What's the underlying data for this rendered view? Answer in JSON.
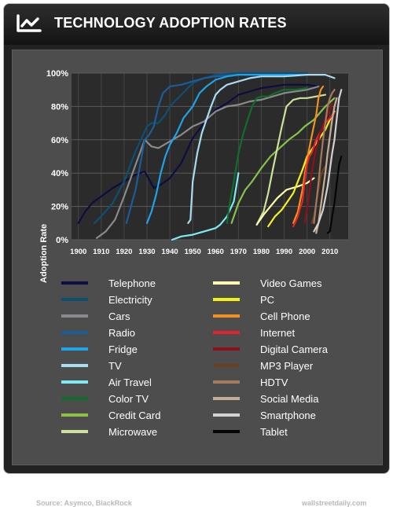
{
  "header": {
    "title": "TECHNOLOGY ADOPTION RATES",
    "logo_icon": "line-chart-logo-icon"
  },
  "footer": {
    "source": "Source: Asymco, BlackRock",
    "site": "wallstreetdaily.com"
  },
  "chart_data": {
    "type": "line",
    "title": "TECHNOLOGY ADOPTION RATES",
    "xlabel": "",
    "ylabel": "Adoption Rate",
    "xlim": [
      1897,
      2018
    ],
    "ylim": [
      0,
      100
    ],
    "x_ticks": [
      1900,
      1910,
      1920,
      1930,
      1940,
      1950,
      1960,
      1970,
      1980,
      1990,
      2000,
      2010
    ],
    "y_ticks": [
      0,
      20,
      40,
      60,
      80,
      100
    ],
    "y_tick_labels": [
      "0%",
      "20%",
      "40%",
      "60%",
      "80%",
      "100%"
    ],
    "grid": true,
    "legend": "bottom",
    "series": [
      {
        "name": "Telephone",
        "color": "#0d0d40",
        "points": [
          [
            1900,
            10
          ],
          [
            1903,
            17
          ],
          [
            1906,
            22
          ],
          [
            1910,
            26
          ],
          [
            1915,
            31
          ],
          [
            1920,
            35
          ],
          [
            1925,
            39
          ],
          [
            1929,
            41
          ],
          [
            1931,
            36
          ],
          [
            1933,
            31
          ],
          [
            1936,
            33
          ],
          [
            1940,
            37
          ],
          [
            1945,
            46
          ],
          [
            1950,
            61
          ],
          [
            1955,
            70
          ],
          [
            1960,
            78
          ],
          [
            1965,
            82
          ],
          [
            1970,
            87
          ],
          [
            1975,
            89
          ],
          [
            1980,
            91
          ],
          [
            1985,
            92
          ],
          [
            1990,
            93
          ],
          [
            1995,
            93
          ],
          [
            2000,
            93
          ],
          [
            2005,
            92
          ]
        ]
      },
      {
        "name": "Electricity",
        "color": "#0e4f73",
        "points": [
          [
            1907,
            10
          ],
          [
            1910,
            14
          ],
          [
            1915,
            22
          ],
          [
            1920,
            35
          ],
          [
            1925,
            53
          ],
          [
            1930,
            68
          ],
          [
            1932,
            70
          ],
          [
            1935,
            70
          ],
          [
            1938,
            75
          ],
          [
            1940,
            80
          ],
          [
            1945,
            87
          ],
          [
            1950,
            94
          ],
          [
            1955,
            97
          ],
          [
            1960,
            99
          ],
          [
            1970,
            100
          ],
          [
            1980,
            100
          ],
          [
            2000,
            100
          ]
        ]
      },
      {
        "name": "Cars",
        "color": "#8a8a8e",
        "points": [
          [
            1908,
            1
          ],
          [
            1912,
            5
          ],
          [
            1916,
            12
          ],
          [
            1920,
            26
          ],
          [
            1925,
            45
          ],
          [
            1929,
            60
          ],
          [
            1932,
            56
          ],
          [
            1935,
            55
          ],
          [
            1940,
            59
          ],
          [
            1945,
            63
          ],
          [
            1950,
            68
          ],
          [
            1955,
            71
          ],
          [
            1960,
            77
          ],
          [
            1965,
            80
          ],
          [
            1970,
            81
          ],
          [
            1975,
            83
          ],
          [
            1980,
            84
          ],
          [
            1990,
            88
          ],
          [
            2000,
            90
          ],
          [
            2005,
            92
          ]
        ]
      },
      {
        "name": "Radio",
        "color": "#1a5d9b",
        "points": [
          [
            1921,
            10
          ],
          [
            1923,
            20
          ],
          [
            1925,
            30
          ],
          [
            1927,
            45
          ],
          [
            1929,
            60
          ],
          [
            1931,
            63
          ],
          [
            1933,
            68
          ],
          [
            1935,
            80
          ],
          [
            1937,
            88
          ],
          [
            1940,
            92
          ],
          [
            1945,
            93
          ],
          [
            1950,
            95
          ],
          [
            1955,
            97
          ],
          [
            1960,
            98
          ],
          [
            1970,
            99
          ],
          [
            1980,
            99
          ]
        ]
      },
      {
        "name": "Fridge",
        "color": "#1ea3e8",
        "points": [
          [
            1930,
            10
          ],
          [
            1932,
            17
          ],
          [
            1934,
            27
          ],
          [
            1936,
            40
          ],
          [
            1938,
            50
          ],
          [
            1940,
            57
          ],
          [
            1943,
            64
          ],
          [
            1946,
            73
          ],
          [
            1950,
            80
          ],
          [
            1953,
            88
          ],
          [
            1956,
            92
          ],
          [
            1960,
            96
          ],
          [
            1965,
            98
          ],
          [
            1970,
            99
          ],
          [
            1980,
            99
          ],
          [
            1990,
            99
          ],
          [
            2000,
            99
          ]
        ]
      },
      {
        "name": "TV",
        "color": "#a9dcf2",
        "points": [
          [
            1948,
            10
          ],
          [
            1949,
            12
          ],
          [
            1950,
            35
          ],
          [
            1952,
            52
          ],
          [
            1954,
            64
          ],
          [
            1956,
            72
          ],
          [
            1958,
            80
          ],
          [
            1960,
            87
          ],
          [
            1962,
            90
          ],
          [
            1965,
            93
          ],
          [
            1970,
            95
          ],
          [
            1975,
            97
          ],
          [
            1980,
            98
          ],
          [
            1990,
            98
          ],
          [
            2000,
            99
          ],
          [
            2008,
            99
          ],
          [
            2012,
            97
          ]
        ]
      },
      {
        "name": "Air Travel",
        "color": "#80eaf2",
        "points": [
          [
            1941,
            0
          ],
          [
            1945,
            2
          ],
          [
            1950,
            3
          ],
          [
            1955,
            5
          ],
          [
            1960,
            7
          ],
          [
            1962,
            9
          ],
          [
            1965,
            14
          ],
          [
            1967,
            20
          ],
          [
            1968,
            23
          ],
          [
            1970,
            40
          ]
        ]
      },
      {
        "name": "Color TV",
        "color": "#0f6e2b",
        "points": [
          [
            1965,
            10
          ],
          [
            1966,
            20
          ],
          [
            1968,
            35
          ],
          [
            1970,
            52
          ],
          [
            1972,
            63
          ],
          [
            1974,
            72
          ],
          [
            1976,
            80
          ],
          [
            1978,
            85
          ],
          [
            1980,
            86
          ],
          [
            1983,
            86
          ],
          [
            1986,
            88
          ],
          [
            1990,
            90
          ],
          [
            1995,
            90
          ],
          [
            2000,
            91
          ]
        ]
      },
      {
        "name": "Credit Card",
        "color": "#87c249",
        "points": [
          [
            1967,
            10
          ],
          [
            1970,
            22
          ],
          [
            1973,
            30
          ],
          [
            1976,
            35
          ],
          [
            1980,
            43
          ],
          [
            1984,
            50
          ],
          [
            1988,
            55
          ],
          [
            1992,
            60
          ],
          [
            1996,
            64
          ],
          [
            1999,
            68
          ],
          [
            2003,
            72
          ],
          [
            2008,
            80
          ],
          [
            2012,
            85
          ]
        ]
      },
      {
        "name": "Microwave",
        "color": "#cde29a",
        "points": [
          [
            1978,
            9
          ],
          [
            1981,
            17
          ],
          [
            1983,
            28
          ],
          [
            1985,
            42
          ],
          [
            1987,
            55
          ],
          [
            1989,
            68
          ],
          [
            1991,
            80
          ],
          [
            1994,
            84
          ],
          [
            1997,
            85
          ],
          [
            2000,
            85
          ],
          [
            2004,
            86
          ],
          [
            2008,
            87
          ]
        ]
      },
      {
        "name": "Video Games",
        "color": "#fdfbb0",
        "points": [
          [
            1978,
            9
          ],
          [
            1981,
            15
          ],
          [
            1984,
            20
          ],
          [
            1987,
            25
          ],
          [
            1991,
            30
          ],
          [
            1996,
            32
          ],
          [
            2000,
            34
          ],
          [
            2003,
            37
          ]
        ]
      },
      {
        "name": "PC",
        "color": "#f5ef1d",
        "points": [
          [
            1983,
            8
          ],
          [
            1986,
            14
          ],
          [
            1989,
            18
          ],
          [
            1992,
            24
          ],
          [
            1994,
            28
          ],
          [
            1996,
            35
          ],
          [
            1998,
            42
          ],
          [
            2000,
            50
          ],
          [
            2002,
            54
          ],
          [
            2004,
            58
          ],
          [
            2006,
            62
          ],
          [
            2008,
            66
          ],
          [
            2010,
            72
          ],
          [
            2012,
            77
          ]
        ]
      },
      {
        "name": "Cell Phone",
        "color": "#f5901e",
        "points": [
          [
            1994,
            10
          ],
          [
            1996,
            17
          ],
          [
            1998,
            30
          ],
          [
            2000,
            48
          ],
          [
            2002,
            62
          ],
          [
            2004,
            75
          ],
          [
            2005,
            85
          ],
          [
            2006,
            90
          ],
          [
            2007,
            92
          ]
        ]
      },
      {
        "name": "Internet",
        "color": "#e4232a",
        "points": [
          [
            1994,
            8
          ],
          [
            1996,
            14
          ],
          [
            1997,
            19
          ],
          [
            1998,
            23
          ],
          [
            1999,
            35
          ],
          [
            2000,
            45
          ],
          [
            2001,
            50
          ],
          [
            2002,
            52
          ],
          [
            2003,
            56
          ],
          [
            2004,
            60
          ],
          [
            2006,
            65
          ],
          [
            2008,
            70
          ],
          [
            2010,
            73
          ],
          [
            2012,
            76
          ]
        ]
      },
      {
        "name": "Digital Camera",
        "color": "#8e1119",
        "points": [
          [
            1999,
            10
          ],
          [
            2000,
            18
          ],
          [
            2001,
            28
          ],
          [
            2002,
            40
          ],
          [
            2003,
            48
          ],
          [
            2004,
            55
          ],
          [
            2005,
            60
          ],
          [
            2006,
            65
          ],
          [
            2008,
            72
          ],
          [
            2010,
            78
          ],
          [
            2011,
            82
          ]
        ]
      },
      {
        "name": "MP3 Player",
        "color": "#6b3f1f",
        "points": [
          [
            2002,
            10
          ],
          [
            2003,
            14
          ],
          [
            2004,
            22
          ],
          [
            2005,
            30
          ],
          [
            2006,
            38
          ],
          [
            2007,
            42
          ],
          [
            2008,
            44
          ]
        ]
      },
      {
        "name": "HDTV",
        "color": "#a47a5d",
        "points": [
          [
            2003,
            10
          ],
          [
            2004,
            22
          ],
          [
            2005,
            34
          ],
          [
            2006,
            48
          ],
          [
            2007,
            60
          ],
          [
            2008,
            70
          ],
          [
            2009,
            80
          ],
          [
            2010,
            85
          ],
          [
            2011,
            88
          ],
          [
            2012,
            90
          ]
        ]
      },
      {
        "name": "Social Media",
        "color": "#c8ad96",
        "points": [
          [
            2004,
            4
          ],
          [
            2005,
            10
          ],
          [
            2006,
            20
          ],
          [
            2007,
            30
          ],
          [
            2008,
            40
          ],
          [
            2009,
            52
          ],
          [
            2010,
            62
          ],
          [
            2011,
            72
          ],
          [
            2012,
            80
          ],
          [
            2013,
            85
          ]
        ]
      },
      {
        "name": "Smartphone",
        "color": "#d2d2d2",
        "points": [
          [
            2003,
            5
          ],
          [
            2005,
            10
          ],
          [
            2007,
            18
          ],
          [
            2008,
            25
          ],
          [
            2009,
            32
          ],
          [
            2010,
            42
          ],
          [
            2011,
            52
          ],
          [
            2012,
            60
          ],
          [
            2013,
            73
          ],
          [
            2014,
            85
          ],
          [
            2015,
            90
          ]
        ]
      },
      {
        "name": "Tablet",
        "color": "#050505",
        "points": [
          [
            2009,
            4
          ],
          [
            2010,
            5
          ],
          [
            2011,
            14
          ],
          [
            2012,
            22
          ],
          [
            2013,
            34
          ],
          [
            2014,
            45
          ],
          [
            2015,
            50
          ]
        ]
      }
    ]
  }
}
